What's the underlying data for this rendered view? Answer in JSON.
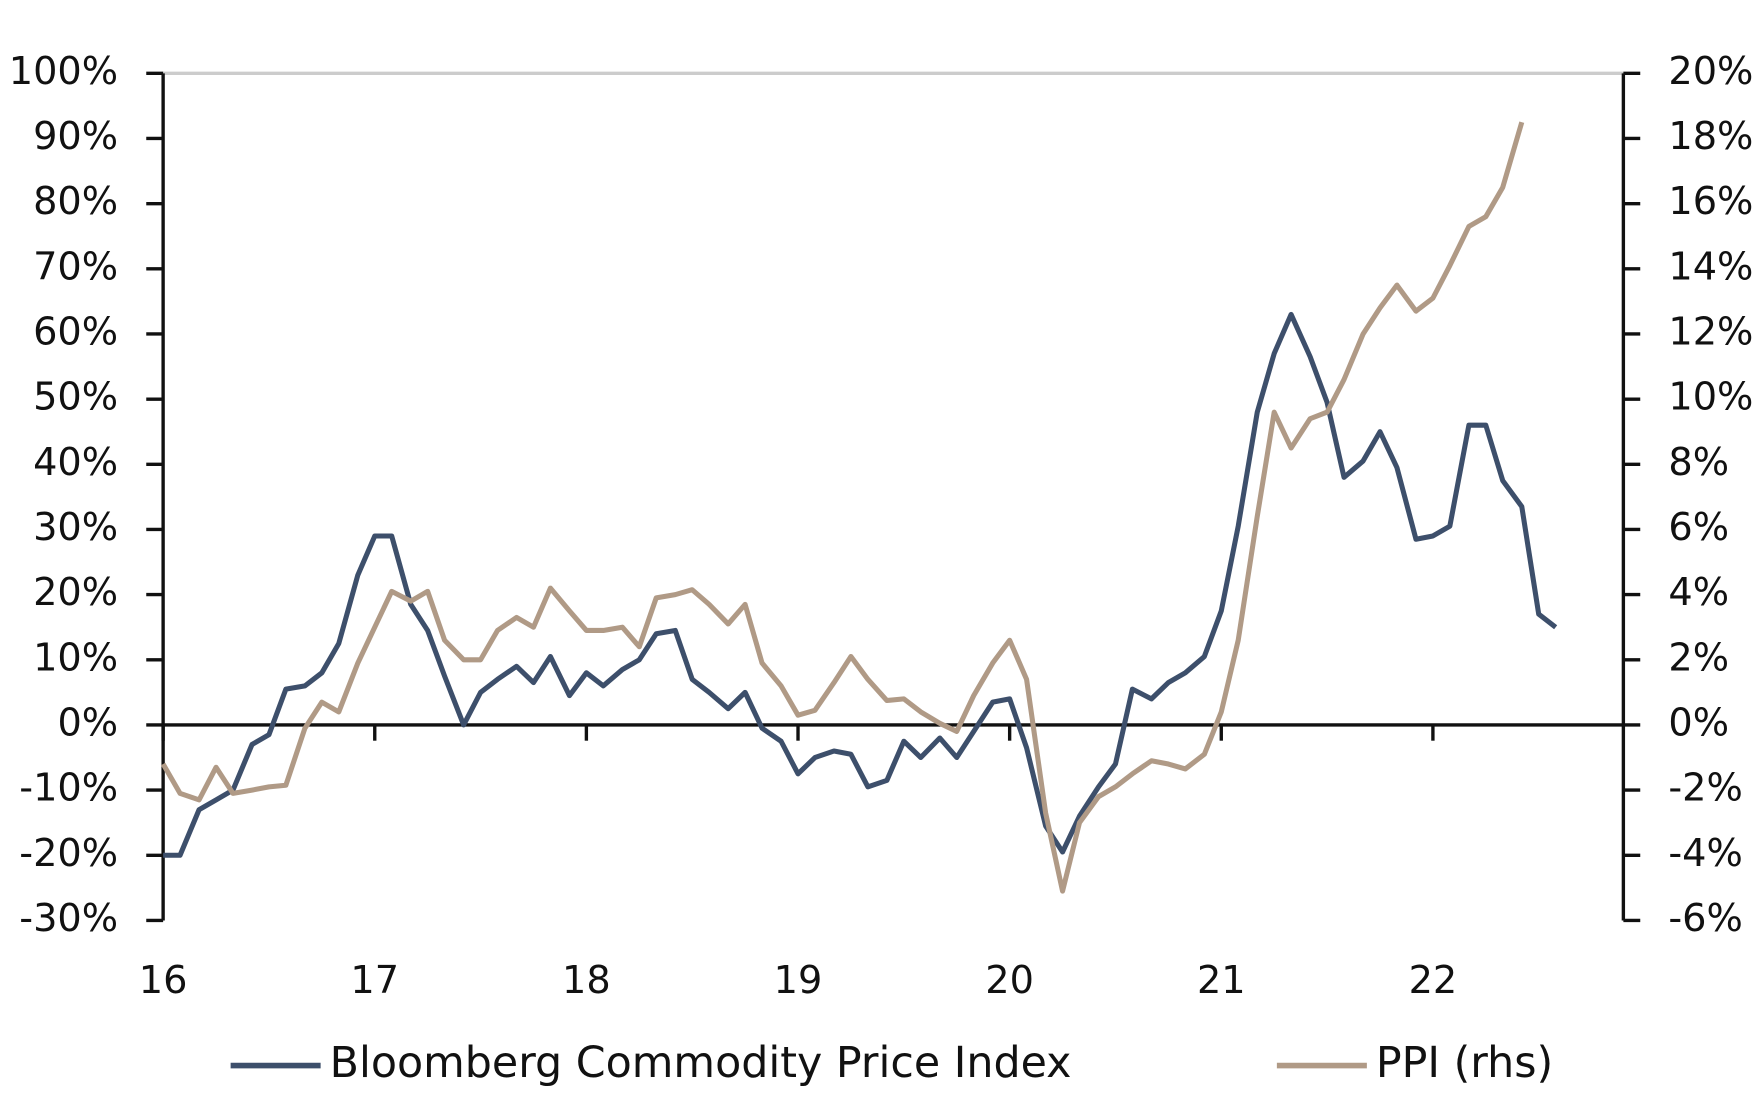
{
  "chart_data": {
    "type": "line",
    "x": [
      16,
      16.08,
      16.17,
      16.25,
      16.33,
      16.42,
      16.5,
      16.58,
      16.67,
      16.75,
      16.83,
      16.92,
      17,
      17.08,
      17.17,
      17.25,
      17.33,
      17.42,
      17.5,
      17.58,
      17.67,
      17.75,
      17.83,
      17.92,
      18,
      18.08,
      18.17,
      18.25,
      18.33,
      18.42,
      18.5,
      18.58,
      18.67,
      18.75,
      18.83,
      18.92,
      19,
      19.08,
      19.17,
      19.25,
      19.33,
      19.42,
      19.5,
      19.58,
      19.67,
      19.75,
      19.83,
      19.92,
      20,
      20.08,
      20.17,
      20.25,
      20.33,
      20.42,
      20.5,
      20.58,
      20.67,
      20.75,
      20.83,
      20.92,
      21,
      21.08,
      21.17,
      21.25,
      21.33,
      21.42,
      21.5,
      21.58,
      21.67,
      21.75,
      21.83,
      21.92,
      22,
      22.08,
      22.17,
      22.25,
      22.33,
      22.42,
      22.5,
      22.58
    ],
    "series": [
      {
        "name": "Bloomberg Commodity Price Index",
        "color": "#3d4f6b",
        "values": [
          -20,
          -20,
          -13,
          -11.5,
          -10,
          -3,
          -1.5,
          5.5,
          6,
          8,
          12.5,
          23,
          29,
          29,
          18.5,
          14.5,
          7.5,
          0,
          5,
          7,
          9,
          6.5,
          10.5,
          4.5,
          8,
          6,
          8.5,
          10,
          14,
          14.5,
          7,
          5,
          2.5,
          5,
          -0.5,
          -2.5,
          -7.5,
          -5,
          -4,
          -4.5,
          -9.5,
          -8.5,
          -2.5,
          -5,
          -2,
          -5,
          -1,
          3.5,
          4,
          -3.5,
          -15.5,
          -19.5,
          -14,
          -9.5,
          -6,
          5.5,
          4,
          6.5,
          8,
          10.5,
          17.5,
          30.5,
          48,
          57,
          63,
          56.5,
          49.5,
          38,
          40.5,
          45,
          39.5,
          28.5,
          29,
          30.5,
          46,
          46,
          37.5,
          33.5,
          17,
          15
        ]
      },
      {
        "name": "PPI (rhs)",
        "color": "#b09a86",
        "axis": "y2",
        "values": [
          -1.2,
          -2.1,
          -2.3,
          -1.3,
          -2.1,
          -2.0,
          -1.9,
          -1.85,
          -0.1,
          0.7,
          0.4,
          1.9,
          3.0,
          4.1,
          3.8,
          4.1,
          2.6,
          2.0,
          2.0,
          2.9,
          3.3,
          3.0,
          4.2,
          3.5,
          2.9,
          2.9,
          3.0,
          2.4,
          3.9,
          4.0,
          4.15,
          3.7,
          3.1,
          3.7,
          1.9,
          1.2,
          0.3,
          0.45,
          1.3,
          2.1,
          1.4,
          0.75,
          0.8,
          0.4,
          0.05,
          -0.2,
          0.9,
          1.9,
          2.6,
          1.4,
          -2.7,
          -5.1,
          -3.0,
          -2.2,
          -1.9,
          -1.5,
          -1.1,
          -1.2,
          -1.35,
          -0.9,
          0.4,
          2.6,
          6.4,
          9.6,
          8.5,
          9.4,
          9.6,
          10.6,
          12.0,
          12.8,
          13.5,
          12.7,
          13.1,
          14.1,
          15.3,
          15.6,
          16.5,
          18.5,
          null,
          null
        ]
      }
    ],
    "xlim": [
      16,
      22.9
    ],
    "xticks": [
      16,
      17,
      18,
      19,
      20,
      21,
      22
    ],
    "ylim": [
      -30,
      100
    ],
    "yticks": [
      {
        "value": -30,
        "label": "-30%"
      },
      {
        "value": -20,
        "label": "-20%"
      },
      {
        "value": -10,
        "label": "-10%"
      },
      {
        "value": 0,
        "label": "0%"
      },
      {
        "value": 10,
        "label": "10%"
      },
      {
        "value": 20,
        "label": "20%"
      },
      {
        "value": 30,
        "label": "30%"
      },
      {
        "value": 40,
        "label": "40%"
      },
      {
        "value": 50,
        "label": "50%"
      },
      {
        "value": 60,
        "label": "60%"
      },
      {
        "value": 70,
        "label": "70%"
      },
      {
        "value": 80,
        "label": "80%"
      },
      {
        "value": 90,
        "label": "90%"
      },
      {
        "value": 100,
        "label": "100%"
      }
    ],
    "y2lim": [
      -6,
      20
    ],
    "y2ticks": [
      {
        "value": -6,
        "label": "-6%"
      },
      {
        "value": -4,
        "label": "-4%"
      },
      {
        "value": -2,
        "label": "-2%"
      },
      {
        "value": 0,
        "label": "0%"
      },
      {
        "value": 2,
        "label": "2%"
      },
      {
        "value": 4,
        "label": "4%"
      },
      {
        "value": 6,
        "label": "6%"
      },
      {
        "value": 8,
        "label": "8%"
      },
      {
        "value": 10,
        "label": "10%"
      },
      {
        "value": 12,
        "label": "12%"
      },
      {
        "value": 14,
        "label": "14%"
      },
      {
        "value": 16,
        "label": "16%"
      },
      {
        "value": 18,
        "label": "18%"
      },
      {
        "value": 20,
        "label": "20%"
      }
    ],
    "legend": "bottom"
  }
}
